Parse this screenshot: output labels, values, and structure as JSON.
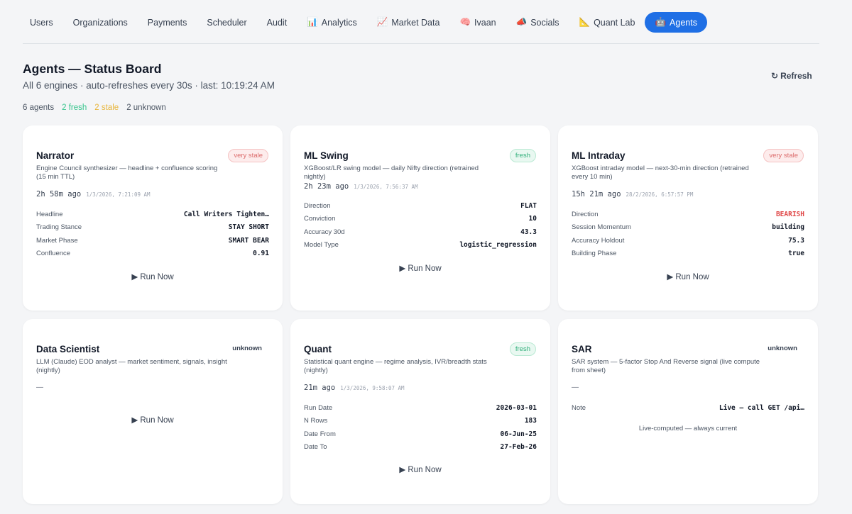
{
  "nav": {
    "tabs": [
      {
        "label": "Users",
        "icon": ""
      },
      {
        "label": "Organizations",
        "icon": ""
      },
      {
        "label": "Payments",
        "icon": ""
      },
      {
        "label": "Scheduler",
        "icon": ""
      },
      {
        "label": "Audit",
        "icon": ""
      },
      {
        "label": "Analytics",
        "icon": "📊"
      },
      {
        "label": "Market Data",
        "icon": "📈"
      },
      {
        "label": "Ivaan",
        "icon": "🧠"
      },
      {
        "label": "Socials",
        "icon": "📣"
      },
      {
        "label": "Quant Lab",
        "icon": "📐"
      },
      {
        "label": "Agents",
        "icon": "🤖"
      }
    ],
    "active": "Agents"
  },
  "header": {
    "title": "Agents — Status Board",
    "subtitle": "All 6 engines · auto-refreshes every 30s · last: 10:19:24 AM",
    "refresh_label": "Refresh",
    "refresh_icon": "↻"
  },
  "counts": {
    "total": "6 agents",
    "fresh": "2 fresh",
    "stale": "2 stale",
    "unknown": "2 unknown"
  },
  "run_now_label": "▶ Run Now",
  "cards": [
    {
      "name": "Narrator",
      "status": "very stale",
      "desc": "Engine Council synthesizer — headline + confluence scoring (15 min TTL)",
      "ago": "2h 58m ago",
      "ts": "1/3/2026, 7:21:09 AM",
      "rows": [
        {
          "label": "Headline",
          "value": "Call Writers Tighten…"
        },
        {
          "label": "Trading Stance",
          "value": "STAY SHORT"
        },
        {
          "label": "Market Phase",
          "value": "SMART BEAR"
        },
        {
          "label": "Confluence",
          "value": "0.91"
        }
      ]
    },
    {
      "name": "ML Swing",
      "status": "fresh",
      "desc": "XGBoost/LR swing model — daily Nifty direction (retrained nightly)",
      "ago": "2h 23m ago",
      "ts": "1/3/2026, 7:56:37 AM",
      "rows": [
        {
          "label": "Direction",
          "value": "FLAT"
        },
        {
          "label": "Conviction",
          "value": "10"
        },
        {
          "label": "Accuracy 30d",
          "value": "43.3"
        },
        {
          "label": "Model Type",
          "value": "logistic_regression"
        }
      ]
    },
    {
      "name": "ML Intraday",
      "status": "very stale",
      "desc": "XGBoost intraday model — next-30-min direction (retrained every 10 min)",
      "ago": "15h 21m ago",
      "ts": "28/2/2026, 6:57:57 PM",
      "rows": [
        {
          "label": "Direction",
          "value": "BEARISH"
        },
        {
          "label": "Session Momentum",
          "value": "building"
        },
        {
          "label": "Accuracy Holdout",
          "value": "75.3"
        },
        {
          "label": "Building Phase",
          "value": "true"
        }
      ]
    },
    {
      "name": "Data Scientist",
      "status": "unknown",
      "desc": "LLM (Claude) EOD analyst — market sentiment, signals, insight (nightly)",
      "dash": "—"
    },
    {
      "name": "Quant",
      "status": "fresh",
      "desc": "Statistical quant engine — regime analysis, IVR/breadth stats (nightly)",
      "ago": "21m ago",
      "ts": "1/3/2026, 9:58:07 AM",
      "rows": [
        {
          "label": "Run Date",
          "value": "2026-03-01"
        },
        {
          "label": "N Rows",
          "value": "183"
        },
        {
          "label": "Date From",
          "value": "06-Jun-25"
        },
        {
          "label": "Date To",
          "value": "27-Feb-26"
        }
      ]
    },
    {
      "name": "SAR",
      "status": "unknown",
      "desc": "SAR system — 5-factor Stop And Reverse signal (live compute from sheet)",
      "dash": "—",
      "rows": [
        {
          "label": "Note",
          "value": "Live — call GET /api…"
        }
      ],
      "note": "Live-computed — always current"
    }
  ],
  "colors": {
    "accent": "#1f6fe5",
    "fresh": "#34c48b",
    "stale": "#e8b53a",
    "bearish": "#e04848"
  }
}
